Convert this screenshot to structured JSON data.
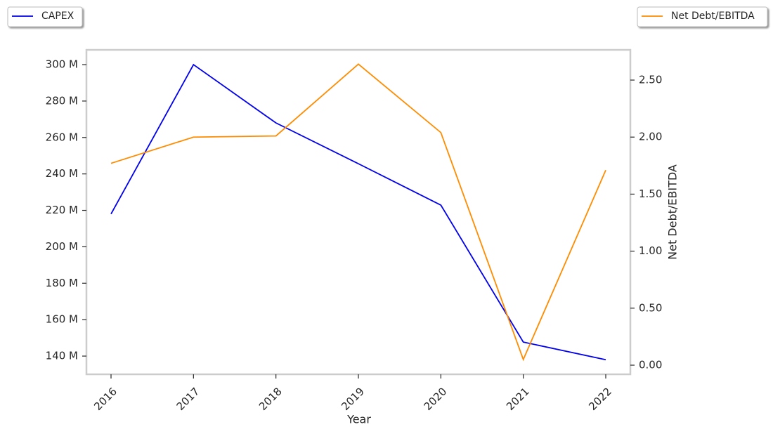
{
  "chart_data": {
    "type": "line",
    "x_label": "Year",
    "y2_label": "Net Debt/EBITDA",
    "categories": [
      "2016",
      "2017",
      "2018",
      "2019",
      "2020",
      "2021",
      "2022"
    ],
    "series": [
      {
        "name": "CAPEX",
        "color": "#0000ee",
        "values": [
          218000000,
          300000000,
          268000000,
          245600000,
          222900000,
          147700000,
          138000000
        ]
      },
      {
        "name": "Net Debt/EBITDA",
        "color": "#ff8c00",
        "axis": "y2",
        "values": [
          1.77,
          2.0,
          2.01,
          2.64,
          2.04,
          0.05,
          1.71
        ]
      }
    ],
    "ylim": [
      130000000,
      308100000
    ],
    "yticks": [
      {
        "value": 140000000,
        "label": "140 M"
      },
      {
        "value": 160000000,
        "label": "160 M"
      },
      {
        "value": 180000000,
        "label": "180 M"
      },
      {
        "value": 200000000,
        "label": "200 M"
      },
      {
        "value": 220000000,
        "label": "220 M"
      },
      {
        "value": 240000000,
        "label": "240 M"
      },
      {
        "value": 260000000,
        "label": "260 M"
      },
      {
        "value": 280000000,
        "label": "280 M"
      },
      {
        "value": 300000000,
        "label": "300 M"
      }
    ],
    "y2lim": [
      -0.08,
      2.765
    ],
    "y2ticks": [
      {
        "value": 0,
        "label": "0.00"
      },
      {
        "value": 0.5,
        "label": "0.50"
      },
      {
        "value": 1,
        "label": "1.00"
      },
      {
        "value": 1.5,
        "label": "1.50"
      },
      {
        "value": 2,
        "label": "2.00"
      },
      {
        "value": 2.5,
        "label": "2.50"
      }
    ]
  }
}
